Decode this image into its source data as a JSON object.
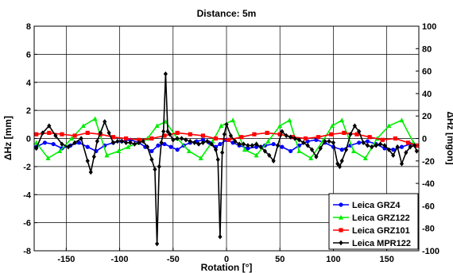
{
  "chart_data": {
    "type": "line",
    "title": "Distance: 5m",
    "xlabel": "Rotation [°]",
    "ylabel": "ΔHz [mm]",
    "y2label": "ΔHz [mgon]",
    "xlim": [
      -180,
      180
    ],
    "ylim": [
      -8,
      8
    ],
    "y2lim": [
      -100,
      100
    ],
    "xticks": [
      -150,
      -100,
      -50,
      0,
      50,
      100,
      150
    ],
    "yticks": [
      -8,
      -6,
      -4,
      -2,
      0,
      2,
      4,
      6,
      8
    ],
    "y2ticks": [
      -100,
      -80,
      -60,
      -40,
      -20,
      0,
      20,
      40,
      60,
      80,
      100
    ],
    "grid": true,
    "legend_position": "bottom-right",
    "series": [
      {
        "name": "Leica GRZ4",
        "color": "#0000ff",
        "marker": "circle",
        "x": [
          -178,
          -170,
          -162,
          -154,
          -146,
          -138,
          -130,
          -122,
          -114,
          -106,
          -98,
          -90,
          -82,
          -76,
          -70,
          -64,
          -58,
          -52,
          -46,
          -40,
          -34,
          -28,
          -22,
          -16,
          -10,
          -6,
          0,
          6,
          12,
          20,
          28,
          36,
          44,
          52,
          60,
          68,
          76,
          84,
          92,
          100,
          108,
          116,
          124,
          132,
          140,
          148,
          156,
          164,
          172,
          178
        ],
        "y": [
          -0.6,
          -0.3,
          -0.4,
          -0.7,
          -0.5,
          -0.3,
          -0.6,
          -0.9,
          -0.5,
          -0.3,
          -0.2,
          -0.1,
          -0.3,
          -0.6,
          -0.9,
          -0.5,
          -0.4,
          -0.6,
          -0.8,
          -0.5,
          -0.3,
          -0.2,
          -0.1,
          -0.3,
          -0.6,
          -0.4,
          -0.1,
          -0.3,
          -0.5,
          -0.7,
          -0.6,
          -0.5,
          -0.4,
          -0.6,
          -0.9,
          -0.5,
          -0.2,
          -0.1,
          -0.3,
          -0.6,
          -0.8,
          -0.5,
          -0.3,
          -0.2,
          -0.4,
          -0.7,
          -0.8,
          -0.6,
          -0.4,
          -0.5
        ]
      },
      {
        "name": "Leica GRZ122",
        "color": "#00ee00",
        "marker": "triangle",
        "x": [
          -178,
          -167,
          -156,
          -145,
          -134,
          -123,
          -112,
          -101,
          -92,
          -83,
          -74,
          -65,
          -57,
          -46,
          -35,
          -24,
          -13,
          -5,
          6,
          17,
          28,
          39,
          50,
          59,
          68,
          79,
          90,
          99,
          108,
          119,
          130,
          141,
          152,
          164,
          175
        ],
        "y": [
          -0.3,
          -1.4,
          -0.9,
          0.0,
          0.9,
          1.4,
          -1.2,
          -0.9,
          -0.6,
          -0.3,
          0.0,
          0.9,
          1.2,
          0.0,
          -0.9,
          -1.4,
          -0.2,
          0.9,
          1.3,
          -0.8,
          -1.2,
          -0.2,
          0.9,
          1.3,
          -0.9,
          -1.4,
          -0.2,
          0.9,
          1.3,
          -0.9,
          -1.4,
          0.0,
          0.9,
          1.3,
          -0.3
        ]
      },
      {
        "name": "Leica GRZ101",
        "color": "#ff0000",
        "marker": "square",
        "x": [
          -178,
          -166,
          -154,
          -142,
          -130,
          -118,
          -106,
          -94,
          -82,
          -70,
          -58,
          -46,
          -34,
          -22,
          -10,
          2,
          14,
          26,
          38,
          50,
          62,
          74,
          86,
          98,
          110,
          122,
          134,
          146,
          158,
          170,
          178
        ],
        "y": [
          0.3,
          0.4,
          0.3,
          0.2,
          0.4,
          0.3,
          0.1,
          0.0,
          -0.1,
          0.0,
          0.2,
          0.4,
          0.3,
          0.2,
          0.0,
          -0.1,
          0.1,
          0.3,
          0.4,
          0.3,
          0.1,
          0.0,
          0.1,
          0.3,
          0.4,
          0.3,
          0.1,
          -0.1,
          0.0,
          -0.3,
          -0.5
        ]
      },
      {
        "name": "Leica MPR122",
        "color": "#000000",
        "marker": "diamond",
        "x": [
          -178,
          -172,
          -166,
          -160,
          -154,
          -148,
          -142,
          -136,
          -130,
          -127,
          -124,
          -121,
          -118,
          -114,
          -110,
          -106,
          -102,
          -98,
          -94,
          -90,
          -86,
          -82,
          -78,
          -74,
          -70,
          -67,
          -65,
          -63,
          -61,
          -59,
          -57,
          -55,
          -53,
          -50,
          -46,
          -42,
          -38,
          -34,
          -30,
          -26,
          -22,
          -18,
          -14,
          -10,
          -8,
          -6,
          -4,
          -2,
          0,
          4,
          8,
          12,
          16,
          20,
          24,
          28,
          32,
          36,
          40,
          44,
          48,
          52,
          56,
          60,
          64,
          68,
          72,
          76,
          80,
          84,
          88,
          92,
          96,
          100,
          104,
          106,
          108,
          112,
          116,
          120,
          124,
          128,
          132,
          136,
          140,
          144,
          148,
          152,
          156,
          160,
          164,
          168,
          172,
          176,
          178
        ],
        "y": [
          -0.7,
          0.4,
          0.9,
          0.2,
          -0.4,
          -0.6,
          -0.3,
          0.0,
          -1.6,
          -2.4,
          -1.3,
          -0.2,
          0.4,
          1.2,
          0.4,
          -0.3,
          -0.2,
          -0.2,
          -0.3,
          -0.3,
          -0.4,
          -0.3,
          -0.2,
          -0.6,
          -1.5,
          -2.2,
          -7.5,
          -2.0,
          -0.3,
          0.5,
          4.6,
          0.5,
          0.3,
          -0.1,
          0.0,
          0.0,
          -0.1,
          -0.2,
          -0.3,
          -0.4,
          -0.3,
          -0.2,
          -0.4,
          -0.8,
          -1.5,
          -7.0,
          -1.0,
          0.3,
          1.0,
          0.2,
          -0.2,
          -0.4,
          -0.4,
          -0.5,
          -0.5,
          -0.4,
          -0.6,
          -0.9,
          -1.2,
          -1.6,
          -0.5,
          0.5,
          0.2,
          0.1,
          0.0,
          -0.1,
          -0.3,
          -0.5,
          -0.8,
          -1.3,
          -0.7,
          -0.2,
          -0.2,
          -0.3,
          -1.8,
          -2.0,
          -1.6,
          -0.8,
          0.3,
          0.9,
          0.5,
          -0.3,
          -0.5,
          -0.6,
          -0.5,
          -0.4,
          -0.5,
          -0.8,
          -1.2,
          -0.6,
          -1.8,
          -1.0,
          -0.6,
          -0.5,
          -0.9
        ]
      }
    ]
  }
}
